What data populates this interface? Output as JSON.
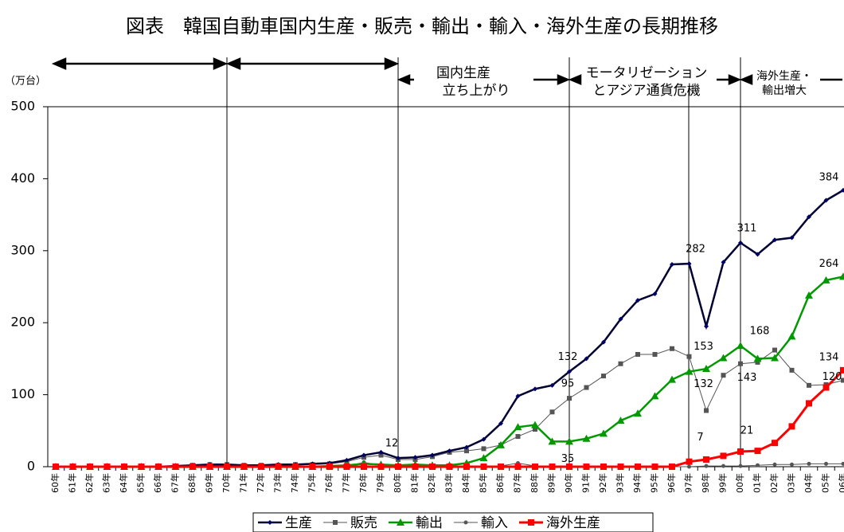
{
  "chart_data": {
    "type": "line",
    "title": "図表　韓国自動車国内生産・販売・輸出・輸入・海外生産の長期推移",
    "y_label": "（万台）",
    "categories": [
      "60年",
      "61年",
      "62年",
      "63年",
      "64年",
      "65年",
      "66年",
      "67年",
      "68年",
      "69年",
      "70年",
      "71年",
      "72年",
      "73年",
      "74年",
      "75年",
      "76年",
      "77年",
      "78年",
      "79年",
      "80年",
      "81年",
      "82年",
      "83年",
      "84年",
      "85年",
      "86年",
      "87年",
      "88年",
      "89年",
      "90年",
      "91年",
      "92年",
      "93年",
      "94年",
      "95年",
      "96年",
      "97年",
      "98年",
      "99年",
      "00年",
      "01年",
      "02年",
      "03年",
      "04年",
      "05年",
      "06年"
    ],
    "series": [
      {
        "name": "生産",
        "color": "#000033",
        "values": [
          0,
          0,
          0,
          0,
          0,
          0,
          0,
          1,
          2,
          3,
          3,
          2,
          2,
          3,
          3,
          4,
          5,
          9,
          16,
          20,
          12,
          13,
          16,
          22,
          27,
          38,
          60,
          98,
          108,
          113,
          132,
          150,
          173,
          205,
          231,
          240,
          281,
          282,
          195,
          284,
          311,
          295,
          315,
          318,
          347,
          370,
          384
        ]
      },
      {
        "name": "販売",
        "color": "#555555",
        "values": [
          0,
          0,
          0,
          0,
          0,
          0,
          0,
          1,
          2,
          3,
          3,
          2,
          2,
          2,
          3,
          3,
          4,
          7,
          13,
          16,
          10,
          10,
          14,
          20,
          22,
          25,
          30,
          42,
          52,
          76,
          95,
          110,
          126,
          143,
          156,
          156,
          164,
          153,
          78,
          127,
          143,
          145,
          162,
          134,
          113,
          114,
          120
        ]
      },
      {
        "name": "輸出",
        "color": "#009900",
        "values": [
          0,
          0,
          0,
          0,
          0,
          0,
          0,
          0,
          0,
          0,
          0,
          0,
          0,
          0,
          0,
          0,
          1,
          2,
          4,
          3,
          2,
          3,
          2,
          2,
          5,
          12,
          30,
          55,
          58,
          35,
          35,
          39,
          46,
          64,
          74,
          98,
          121,
          132,
          136,
          151,
          168,
          150,
          151,
          181,
          238,
          259,
          264
        ]
      },
      {
        "name": "輸入",
        "color": "#555555",
        "values": [
          0,
          0,
          0,
          0,
          0,
          0,
          0,
          0,
          0,
          0,
          0,
          0,
          0,
          0,
          0,
          0,
          0,
          1,
          6,
          2,
          0,
          0,
          0,
          0,
          0,
          0,
          1,
          5,
          1,
          0,
          0,
          0,
          0,
          0,
          0,
          0,
          0,
          0,
          1,
          1,
          1,
          2,
          3,
          3,
          4,
          4,
          4
        ]
      },
      {
        "name": "海外生産",
        "color": "#ff0000",
        "values": [
          0,
          0,
          0,
          0,
          0,
          0,
          0,
          0,
          0,
          0,
          0,
          0,
          0,
          0,
          0,
          0,
          0,
          0,
          0,
          0,
          0,
          0,
          0,
          0,
          0,
          0,
          0,
          0,
          0,
          0,
          0,
          0,
          0,
          0,
          0,
          0,
          0,
          7,
          10,
          15,
          21,
          22,
          33,
          56,
          88,
          110,
          134
        ]
      }
    ],
    "ylim": [
      0,
      500
    ],
    "yticks": [
      0,
      100,
      200,
      300,
      400,
      500
    ],
    "grid": false,
    "annotations": [
      "国内生産",
      "立ち上がり",
      "モータリゼーション",
      "とアジア通貨危機",
      "海外生産・",
      "輸出増大"
    ]
  }
}
